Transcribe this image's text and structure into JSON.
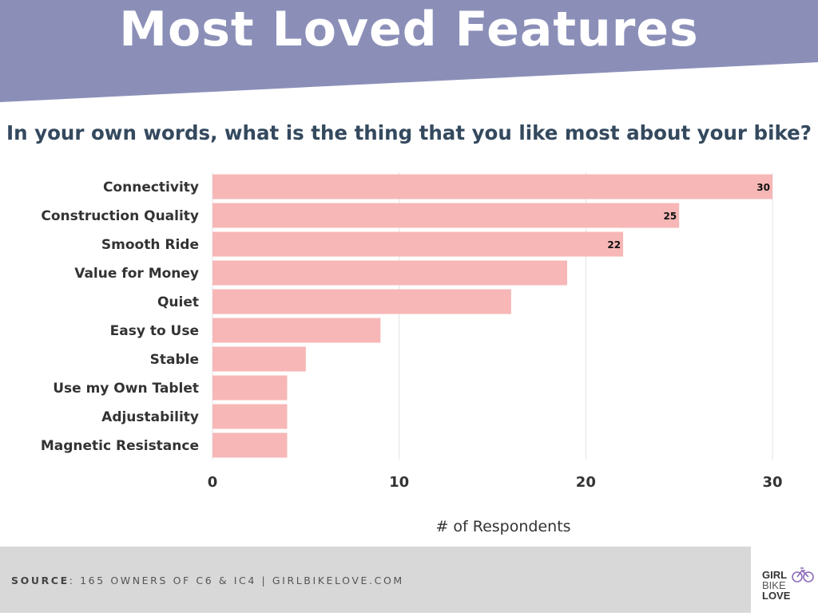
{
  "header": {
    "title": "Most Loved Features",
    "banner_color": "#8b8fb8"
  },
  "question": "In your own words, what is the thing that you like most about your bike?",
  "chart_data": {
    "type": "bar",
    "orientation": "horizontal",
    "categories": [
      "Connectivity",
      "Construction Quality",
      "Smooth Ride",
      "Value for Money",
      "Quiet",
      "Easy to Use",
      "Stable",
      "Use my Own Tablet",
      "Adjustability",
      "Magnetic Resistance"
    ],
    "values": [
      30,
      25,
      22,
      19,
      16,
      9,
      5,
      4,
      4,
      4
    ],
    "data_labels": [
      "30",
      "25",
      "22",
      "",
      "",
      "",
      "",
      "",
      "",
      ""
    ],
    "xlim": [
      0,
      30
    ],
    "xticks": [
      0,
      10,
      20,
      30
    ],
    "xlabel": "# of Respondents",
    "grid": true,
    "bar_color": "#f7b7b7"
  },
  "footer": {
    "source_label": "SOURCE",
    "source_text": ": 165 OWNERS OF C6 & IC4 | GIRLBIKELOVE.COM"
  },
  "logo": {
    "line1": "GIRL",
    "line2": "BIKE",
    "line3": "LOVE",
    "accent_color": "#8b6bb8"
  }
}
